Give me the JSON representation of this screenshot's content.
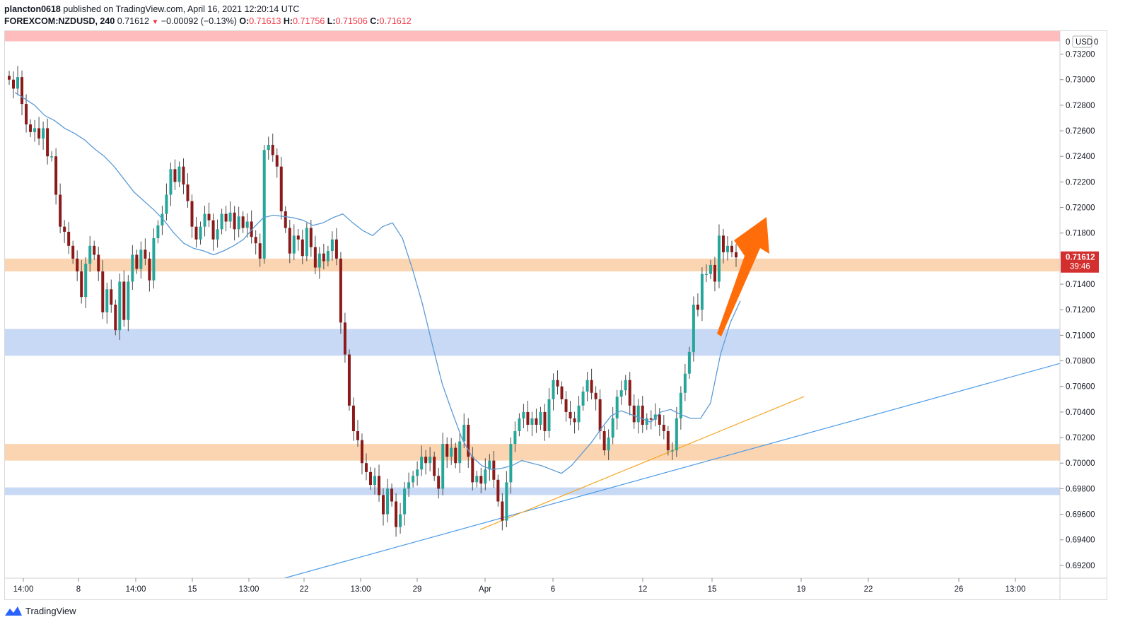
{
  "header": {
    "author": "plancton0618",
    "published_text": "published on TradingView.com, April 16, 2021 12:20:14 UTC",
    "symbol": "FOREXCOM:NZDUSD, 240",
    "last": "0.71612",
    "change": "−0.00092 (−0.13%)",
    "o_label": "O:",
    "o_value": "0.71613",
    "h_label": "H:",
    "h_value": "0.71756",
    "l_label": "L:",
    "l_value": "0.71506",
    "c_label": "C:",
    "c_value": "0.71612"
  },
  "price_axis": {
    "currency": "USD",
    "currency_prefix": "0",
    "currency_suffix": "0",
    "last_price_label": "0.71612",
    "countdown": "39:46"
  },
  "footer": {
    "brand": "TradingView"
  },
  "colors": {
    "up_candle": "#26a69a",
    "down_candle": "#8b1a1a",
    "wick": "#4a4a4a",
    "ma_line": "#5b9bd5",
    "orange_zone": "#fbd5b2",
    "blue_zone": "#c8d9f5",
    "red_zone": "#ffbcbc",
    "arrow": "#ff6d0a",
    "trendline_blue": "#4b9be8",
    "trendline_orange": "#f5a623",
    "last_price_tag": "#d32f2f"
  },
  "chart_data": {
    "type": "candlestick",
    "title": "FOREXCOM:NZDUSD, 240",
    "ylim": [
      0.691,
      0.7338
    ],
    "y_ticks": [
      "0.73200",
      "0.73000",
      "0.72800",
      "0.72600",
      "0.72400",
      "0.72200",
      "0.72000",
      "0.71800",
      "0.71400",
      "0.71200",
      "0.71000",
      "0.70800",
      "0.70600",
      "0.70400",
      "0.70200",
      "0.70000",
      "0.69800",
      "0.69600",
      "0.69400",
      "0.69200"
    ],
    "x_ticks": [
      "14:00",
      "8",
      "14:00",
      "15",
      "13:00",
      "22",
      "13:00",
      "29",
      "Apr",
      "6",
      "12",
      "15",
      "19",
      "22",
      "26",
      "13:00"
    ],
    "zones": [
      {
        "color": "red",
        "from": 0.733,
        "to": 0.7338
      },
      {
        "color": "orange",
        "from": 0.715,
        "to": 0.716
      },
      {
        "color": "blue",
        "from": 0.7084,
        "to": 0.7105
      },
      {
        "color": "orange",
        "from": 0.7002,
        "to": 0.7015
      },
      {
        "color": "blue",
        "from": 0.6975,
        "to": 0.6981
      }
    ],
    "series": [
      {
        "name": "candles",
        "closes": [
          0.73,
          0.7293,
          0.7302,
          0.7281,
          0.7265,
          0.7259,
          0.7262,
          0.7254,
          0.7262,
          0.724,
          0.724,
          0.721,
          0.7185,
          0.7181,
          0.717,
          0.716,
          0.715,
          0.713,
          0.7156,
          0.717,
          0.7163,
          0.715,
          0.7118,
          0.7136,
          0.7124,
          0.7104,
          0.7142,
          0.7112,
          0.7142,
          0.7163,
          0.7152,
          0.7167,
          0.716,
          0.7143,
          0.7176,
          0.7186,
          0.7195,
          0.721,
          0.723,
          0.722,
          0.7232,
          0.7218,
          0.7205,
          0.7185,
          0.7175,
          0.7185,
          0.7195,
          0.719,
          0.7175,
          0.7183,
          0.7195,
          0.7189,
          0.7196,
          0.7183,
          0.7193,
          0.7184,
          0.7189,
          0.7177,
          0.7172,
          0.716,
          0.7245,
          0.7249,
          0.7241,
          0.7232,
          0.7197,
          0.7184,
          0.7164,
          0.7178,
          0.7175,
          0.7162,
          0.7184,
          0.7169,
          0.7153,
          0.7164,
          0.7158,
          0.7166,
          0.7175,
          0.716,
          0.711,
          0.7085,
          0.7045,
          0.7025,
          0.7018,
          0.7,
          0.6993,
          0.6983,
          0.699,
          0.6975,
          0.696,
          0.698,
          0.697,
          0.695,
          0.696,
          0.698,
          0.6985,
          0.699,
          0.6995,
          0.7005,
          0.7,
          0.7005,
          0.699,
          0.698,
          0.7015,
          0.7005,
          0.7012,
          0.7,
          0.7017,
          0.703,
          0.7005,
          0.6985,
          0.699,
          0.6984,
          0.6995,
          0.7002,
          0.6987,
          0.697,
          0.6955,
          0.6985,
          0.7015,
          0.7025,
          0.7035,
          0.704,
          0.703,
          0.7035,
          0.703,
          0.704,
          0.7025,
          0.705,
          0.7065,
          0.706,
          0.705,
          0.704,
          0.7035,
          0.7032,
          0.7045,
          0.7056,
          0.7065,
          0.7055,
          0.705,
          0.7025,
          0.701,
          0.702,
          0.7035,
          0.7052,
          0.7057,
          0.7065,
          0.7045,
          0.7032,
          0.7045,
          0.703,
          0.7035,
          0.7034,
          0.7038,
          0.703,
          0.7025,
          0.701,
          0.701,
          0.7035,
          0.7055,
          0.707,
          0.7087,
          0.7124,
          0.712,
          0.7148,
          0.7148,
          0.7155,
          0.7142,
          0.7178,
          0.7165,
          0.717,
          0.7165,
          0.7161
        ]
      }
    ],
    "moving_average": [
      0.729,
      0.7285,
      0.728,
      0.7272,
      0.7268,
      0.7262,
      0.7258,
      0.7253,
      0.7246,
      0.724,
      0.7232,
      0.7222,
      0.7212,
      0.7205,
      0.7198,
      0.719,
      0.718,
      0.7172,
      0.7168,
      0.7166,
      0.7163,
      0.7166,
      0.717,
      0.7175,
      0.7184,
      0.7192,
      0.7194,
      0.7193,
      0.7192,
      0.719,
      0.7186,
      0.7188,
      0.7192,
      0.7195,
      0.7188,
      0.7182,
      0.7178,
      0.7185,
      0.7188,
      0.7176,
      0.7152,
      0.7125,
      0.7093,
      0.7062,
      0.704,
      0.7019,
      0.7005,
      0.6998,
      0.6995,
      0.6996,
      0.6998,
      0.7002,
      0.7,
      0.6998,
      0.6995,
      0.6992,
      0.6998,
      0.7007,
      0.7016,
      0.7027,
      0.7037,
      0.7041,
      0.7038,
      0.7035,
      0.7032,
      0.704,
      0.7042,
      0.7038,
      0.7035,
      0.7035,
      0.7047,
      0.7085,
      0.711,
      0.7127
    ]
  }
}
